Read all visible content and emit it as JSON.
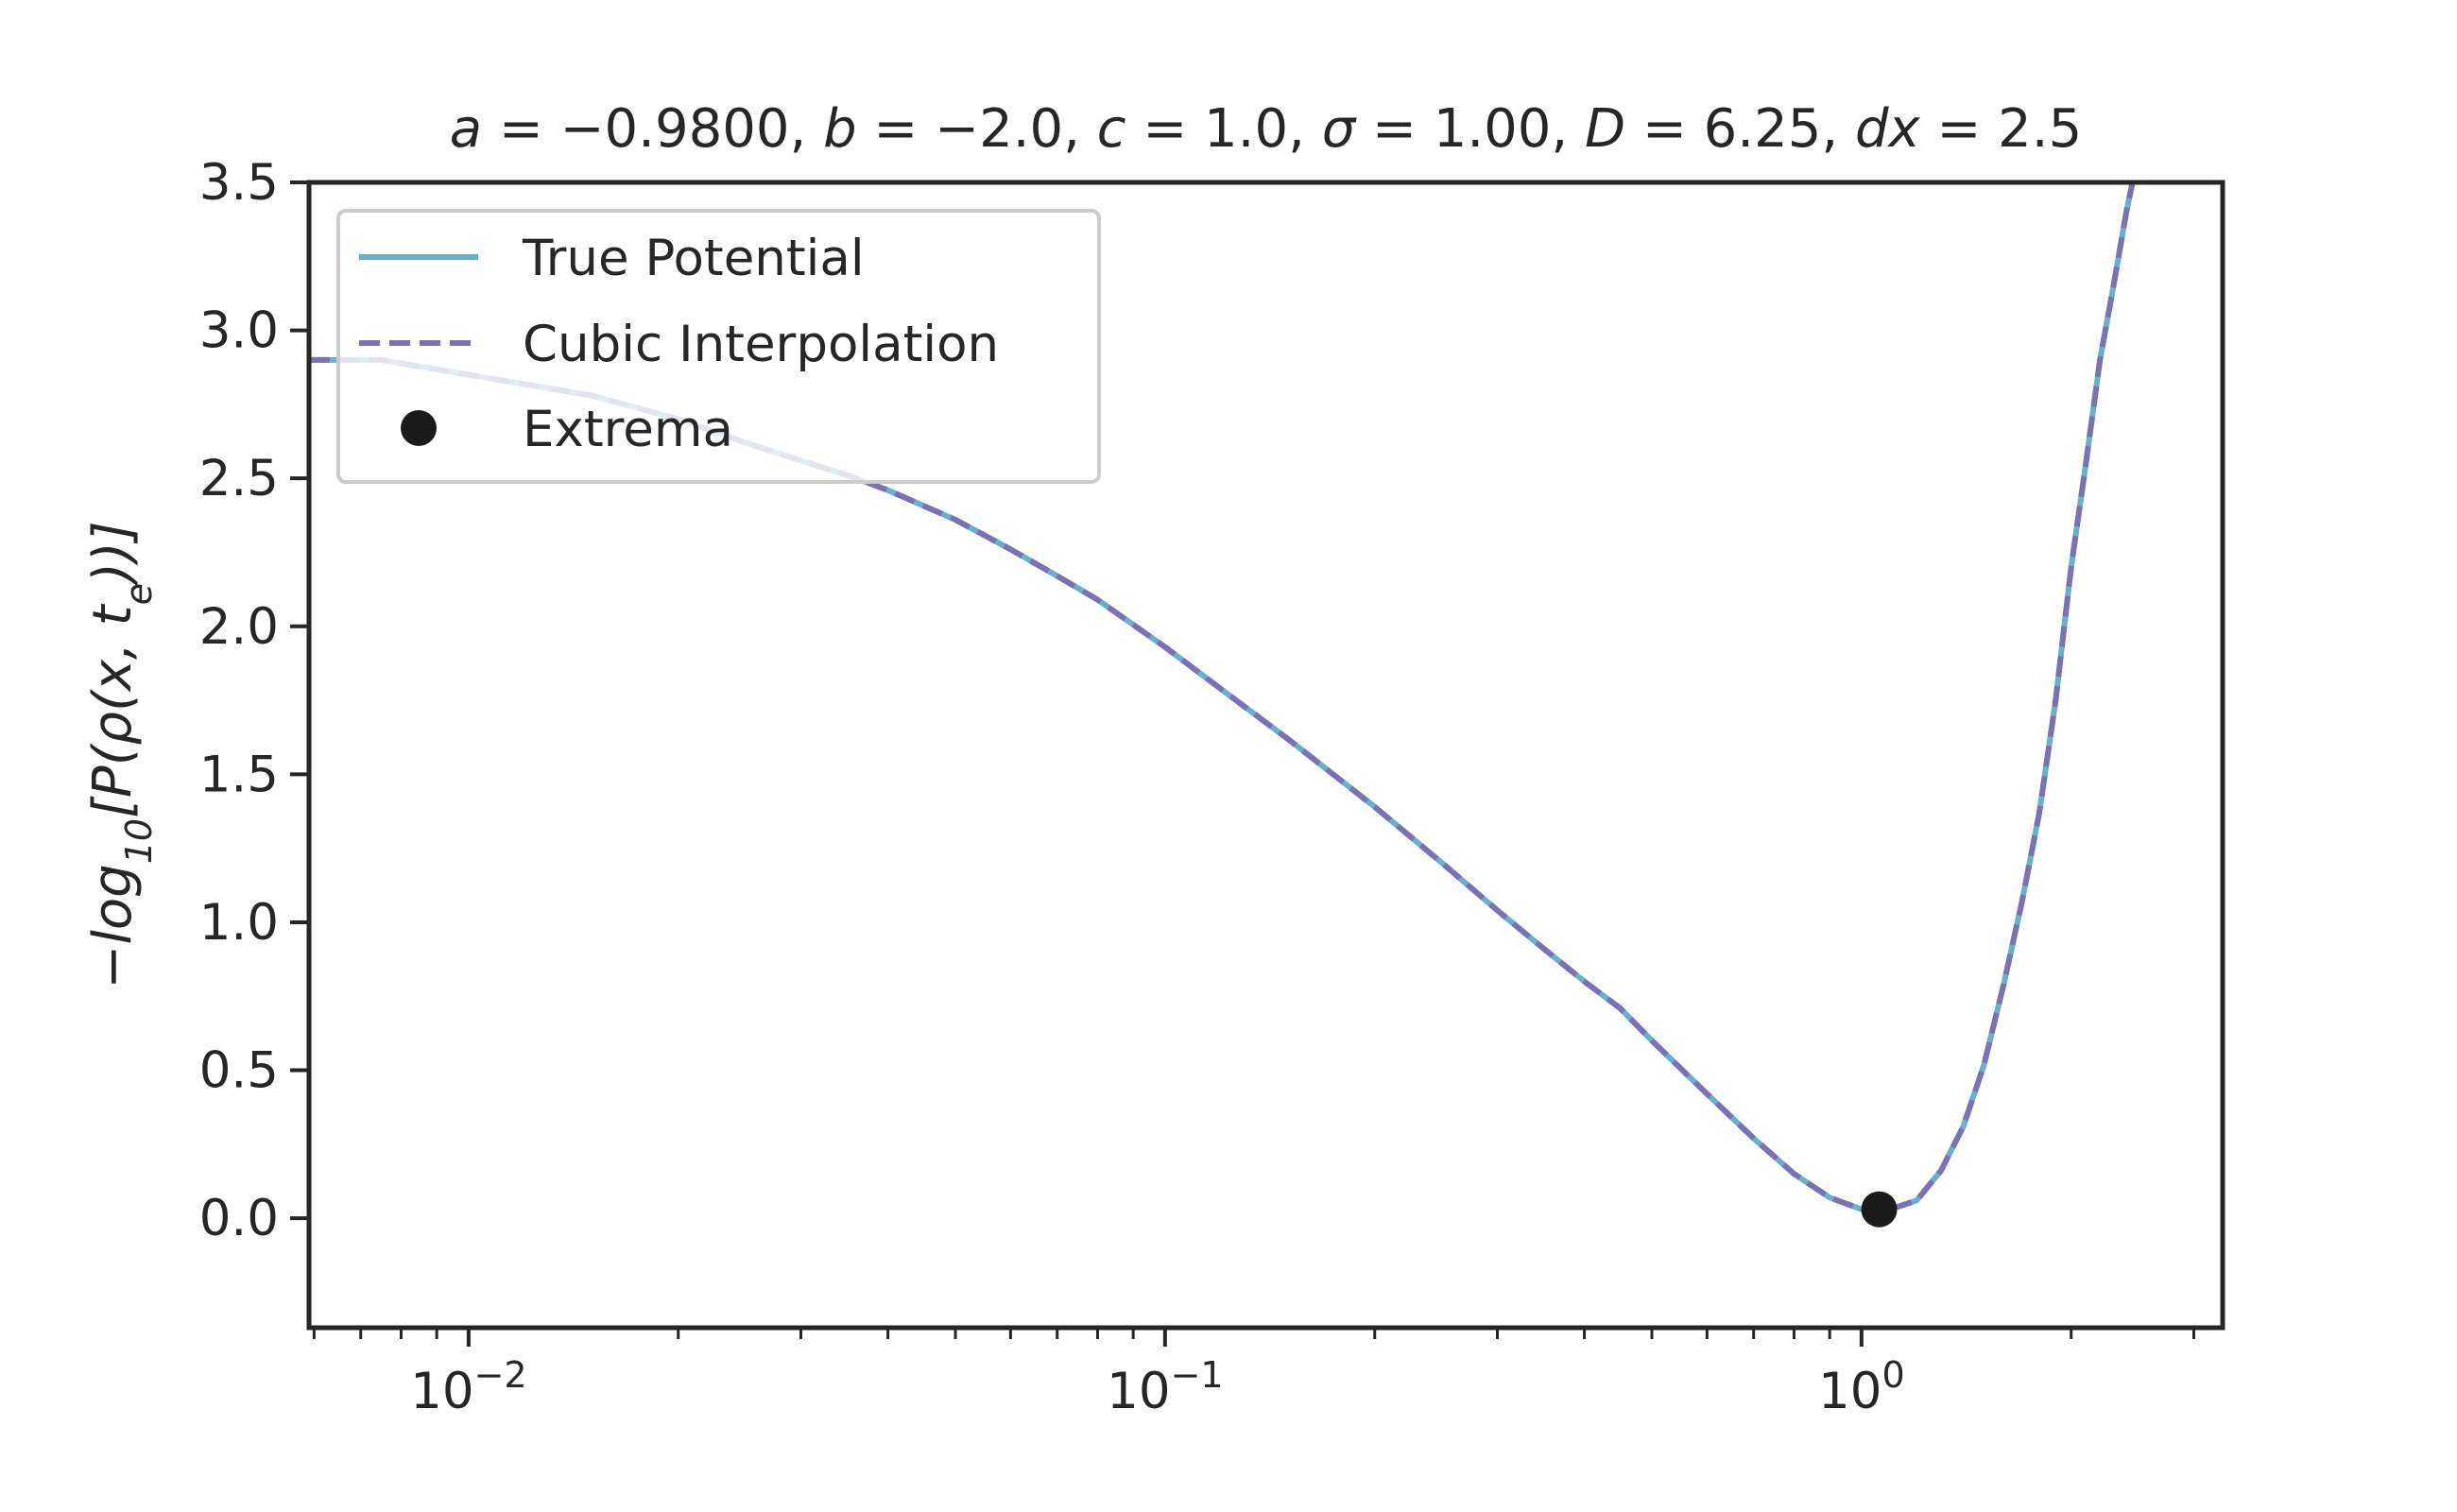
{
  "chart_data": {
    "type": "line",
    "title": "a = −0.9800, b = −2.0, c = 1.0, σ = 1.00, D = 6.25, dx = 2.5",
    "title_parts": [
      {
        "t": "a",
        "italic": true
      },
      {
        "t": " = −0.9800, "
      },
      {
        "t": "b",
        "italic": true
      },
      {
        "t": " = −2.0, "
      },
      {
        "t": "c",
        "italic": true
      },
      {
        "t": " = 1.0, "
      },
      {
        "t": "σ",
        "italic": true
      },
      {
        "t": " = 1.00, "
      },
      {
        "t": "D",
        "italic": true
      },
      {
        "t": " = 6.25, "
      },
      {
        "t": "dx",
        "italic": true
      },
      {
        "t": " = 2.5"
      }
    ],
    "xlabel": "",
    "ylabel": "−log10[P(ρ(x, te))]",
    "ylabel_parts": [
      {
        "t": "−log"
      },
      {
        "t": "10",
        "sub": true
      },
      {
        "t": "[P(ρ(x, t"
      },
      {
        "t": "e",
        "sub": true
      },
      {
        "t": "))]"
      }
    ],
    "xscale": "log",
    "xlim": [
      0.0059,
      3.3
    ],
    "ylim": [
      -0.37,
      3.5
    ],
    "x_major_ticks": [
      {
        "value": 0.01,
        "base": "10",
        "exp": "−2"
      },
      {
        "value": 0.1,
        "base": "10",
        "exp": "−1"
      },
      {
        "value": 1,
        "base": "10",
        "exp": "0"
      }
    ],
    "x_minor_ticks": [
      0.006,
      0.007,
      0.008,
      0.009,
      0.02,
      0.03,
      0.04,
      0.05,
      0.06,
      0.07,
      0.08,
      0.09,
      0.2,
      0.3,
      0.4,
      0.5,
      0.6,
      0.7,
      0.8,
      0.9,
      2,
      3
    ],
    "y_ticks": [
      {
        "value": 0.0,
        "label": "0.0"
      },
      {
        "value": 0.5,
        "label": "0.5"
      },
      {
        "value": 1.0,
        "label": "1.0"
      },
      {
        "value": 1.5,
        "label": "1.5"
      },
      {
        "value": 2.0,
        "label": "2.0"
      },
      {
        "value": 2.5,
        "label": "2.5"
      },
      {
        "value": 3.0,
        "label": "3.0"
      },
      {
        "value": 3.5,
        "label": "3.5"
      }
    ],
    "grid": false,
    "legend_position": "top-left",
    "series": [
      {
        "name": "True Potential",
        "style": "solid",
        "color": "#6aafcb",
        "x": [
          0.0059,
          0.0075,
          0.01,
          0.015,
          0.02,
          0.025,
          0.03,
          0.035,
          0.04,
          0.05,
          0.06,
          0.07,
          0.08,
          0.1,
          0.12,
          0.15,
          0.2,
          0.25,
          0.3,
          0.35,
          0.4,
          0.45,
          0.5,
          0.6,
          0.7,
          0.8,
          0.9,
          1.0,
          1.05,
          1.1,
          1.2,
          1.3,
          1.4,
          1.5,
          1.6,
          1.7,
          1.8,
          1.9,
          2.0,
          2.1,
          2.2,
          2.3,
          2.4,
          2.5
        ],
        "y": [
          2.9,
          2.9,
          2.85,
          2.78,
          2.7,
          2.62,
          2.56,
          2.51,
          2.46,
          2.36,
          2.26,
          2.17,
          2.09,
          1.93,
          1.79,
          1.62,
          1.39,
          1.2,
          1.04,
          0.91,
          0.8,
          0.71,
          0.6,
          0.42,
          0.27,
          0.15,
          0.07,
          0.03,
          0.03,
          0.03,
          0.06,
          0.16,
          0.31,
          0.52,
          0.79,
          1.07,
          1.37,
          1.75,
          2.2,
          2.55,
          2.9,
          3.15,
          3.4,
          3.6
        ]
      },
      {
        "name": "Cubic Interpolation",
        "style": "dashed",
        "color": "#7b72b4",
        "x": [
          0.0059,
          0.0075,
          0.01,
          0.015,
          0.02,
          0.025,
          0.03,
          0.035,
          0.04,
          0.05,
          0.06,
          0.07,
          0.08,
          0.1,
          0.12,
          0.15,
          0.2,
          0.25,
          0.3,
          0.35,
          0.4,
          0.45,
          0.5,
          0.6,
          0.7,
          0.8,
          0.9,
          1.0,
          1.05,
          1.1,
          1.2,
          1.3,
          1.4,
          1.5,
          1.6,
          1.7,
          1.8,
          1.9,
          2.0,
          2.1,
          2.2,
          2.3,
          2.4,
          2.5
        ],
        "y": [
          2.9,
          2.9,
          2.85,
          2.78,
          2.7,
          2.62,
          2.56,
          2.51,
          2.46,
          2.36,
          2.26,
          2.17,
          2.09,
          1.93,
          1.79,
          1.62,
          1.39,
          1.2,
          1.04,
          0.91,
          0.8,
          0.71,
          0.6,
          0.42,
          0.27,
          0.15,
          0.07,
          0.03,
          0.03,
          0.03,
          0.06,
          0.16,
          0.31,
          0.52,
          0.79,
          1.07,
          1.37,
          1.75,
          2.2,
          2.55,
          2.9,
          3.15,
          3.4,
          3.6
        ]
      },
      {
        "name": "Extrema",
        "style": "marker",
        "color": "#1a1a1a",
        "x": [
          1.06
        ],
        "y": [
          0.03
        ]
      }
    ]
  }
}
